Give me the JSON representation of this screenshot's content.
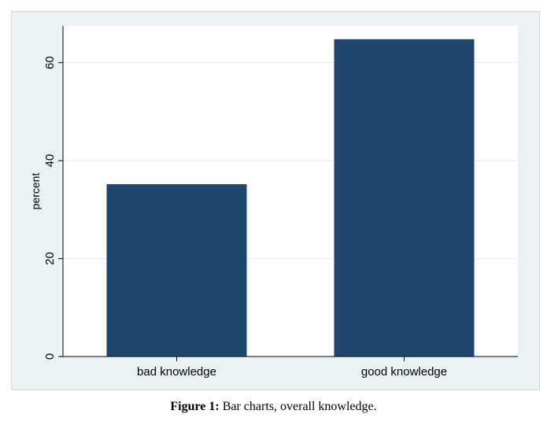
{
  "caption": {
    "label": "Figure 1:",
    "text": "Bar charts, overall knowledge."
  },
  "chart_data": {
    "type": "bar",
    "categories": [
      "bad knowledge",
      "good knowledge"
    ],
    "values": [
      35.2,
      64.8
    ],
    "ylabel": "percent",
    "xlabel": "",
    "ylim": [
      0,
      67.5
    ],
    "yticks": [
      0,
      20,
      40,
      60
    ],
    "grid": true,
    "bar_color": "#1f476d",
    "background_color": "#eaf2f3",
    "plot_background_color": "#ffffff"
  }
}
